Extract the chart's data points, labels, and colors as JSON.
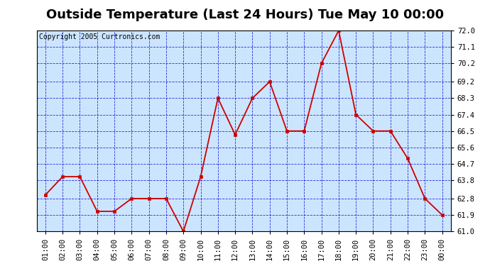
{
  "title": "Outside Temperature (Last 24 Hours) Tue May 10 00:00",
  "copyright": "Copyright 2005 Curtronics.com",
  "x_labels": [
    "01:00",
    "02:00",
    "03:00",
    "04:00",
    "05:00",
    "06:00",
    "07:00",
    "08:00",
    "09:00",
    "10:00",
    "11:00",
    "12:00",
    "13:00",
    "14:00",
    "15:00",
    "16:00",
    "17:00",
    "18:00",
    "19:00",
    "20:00",
    "21:00",
    "22:00",
    "23:00",
    "00:00"
  ],
  "y_values": [
    63.0,
    64.0,
    64.0,
    62.1,
    62.1,
    62.8,
    62.8,
    62.8,
    61.0,
    64.0,
    68.3,
    66.3,
    68.3,
    69.2,
    66.5,
    66.5,
    70.2,
    72.0,
    67.4,
    66.5,
    66.5,
    65.0,
    62.8,
    61.9
  ],
  "line_color": "#cc0000",
  "marker_color": "#cc0000",
  "plot_bg": "#cce5ff",
  "title_bg": "#ffffff",
  "grid_color": "#0000cc",
  "border_color": "#000000",
  "y_min": 61.0,
  "y_max": 72.0,
  "y_ticks": [
    61.0,
    61.9,
    62.8,
    63.8,
    64.7,
    65.6,
    66.5,
    67.4,
    68.3,
    69.2,
    70.2,
    71.1,
    72.0
  ],
  "title_fontsize": 13,
  "copyright_fontsize": 7,
  "tick_fontsize": 7.5
}
